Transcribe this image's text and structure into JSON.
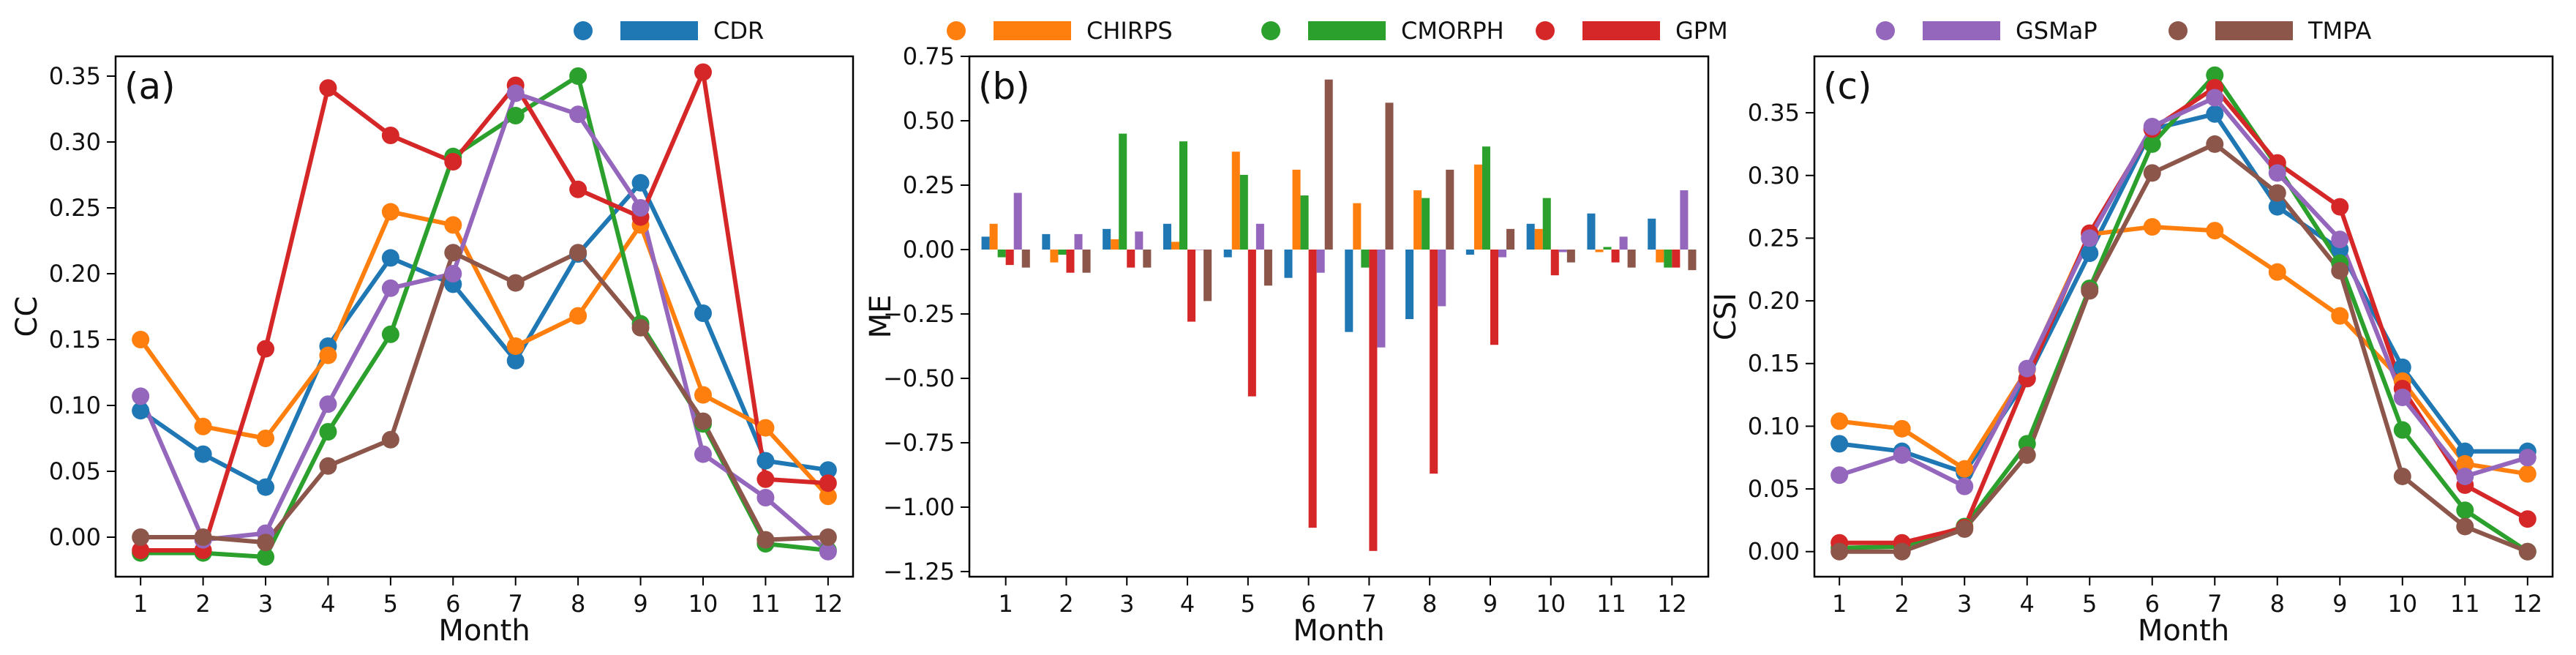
{
  "legend": [
    {
      "name": "CDR",
      "color": "#1f77b4"
    },
    {
      "name": "CHIRPS",
      "color": "#ff7f0e"
    },
    {
      "name": "CMORPH",
      "color": "#2ca02c"
    },
    {
      "name": "GPM",
      "color": "#d62728"
    },
    {
      "name": "GSMaP",
      "color": "#9467bd"
    },
    {
      "name": "TMPA",
      "color": "#8c564b"
    }
  ],
  "chart_data": [
    {
      "id": "a",
      "panel_label": "(a)",
      "type": "line",
      "xlabel": "Month",
      "ylabel": "CC",
      "categories": [
        "1",
        "2",
        "3",
        "4",
        "5",
        "6",
        "7",
        "8",
        "9",
        "10",
        "11",
        "12"
      ],
      "ylim": [
        -0.03,
        0.365
      ],
      "yticks": [
        0.0,
        0.05,
        0.1,
        0.15,
        0.2,
        0.25,
        0.3,
        0.35
      ],
      "ytick_labels": [
        "0.00",
        "0.05",
        "0.10",
        "0.15",
        "0.20",
        "0.25",
        "0.30",
        "0.35"
      ],
      "series": [
        {
          "name": "CDR",
          "values": [
            0.096,
            0.063,
            0.038,
            0.145,
            0.212,
            0.192,
            0.134,
            0.215,
            0.269,
            0.17,
            0.058,
            0.051
          ]
        },
        {
          "name": "CHIRPS",
          "values": [
            0.15,
            0.084,
            0.075,
            0.138,
            0.247,
            0.237,
            0.145,
            0.168,
            0.237,
            0.108,
            0.083,
            0.031
          ]
        },
        {
          "name": "CMORPH",
          "values": [
            -0.012,
            -0.012,
            -0.015,
            0.08,
            0.154,
            0.289,
            0.32,
            0.35,
            0.162,
            0.086,
            -0.005,
            -0.01
          ]
        },
        {
          "name": "GPM",
          "values": [
            -0.01,
            -0.01,
            0.143,
            0.341,
            0.305,
            0.285,
            0.343,
            0.264,
            0.243,
            0.353,
            0.044,
            0.041
          ]
        },
        {
          "name": "GSMaP",
          "values": [
            0.107,
            -0.002,
            0.003,
            0.101,
            0.189,
            0.2,
            0.337,
            0.321,
            0.25,
            0.063,
            0.03,
            -0.011
          ]
        },
        {
          "name": "TMPA",
          "values": [
            0.0,
            0.0,
            -0.004,
            0.054,
            0.074,
            0.216,
            0.193,
            0.216,
            0.159,
            0.088,
            -0.002,
            0.0
          ]
        }
      ]
    },
    {
      "id": "b",
      "panel_label": "(b)",
      "type": "bar",
      "xlabel": "Month",
      "ylabel": "ME",
      "categories": [
        "1",
        "2",
        "3",
        "4",
        "5",
        "6",
        "7",
        "8",
        "9",
        "10",
        "11",
        "12"
      ],
      "ylim": [
        -1.27,
        0.75
      ],
      "yticks": [
        0.75,
        0.5,
        0.25,
        0.0,
        -0.25,
        -0.5,
        -0.75,
        -1.0,
        -1.25
      ],
      "ytick_labels": [
        "0.75",
        "0.50",
        "0.25",
        "0.00",
        "−0.25",
        "−0.50",
        "−0.75",
        "−1.00",
        "−1.25"
      ],
      "series": [
        {
          "name": "CDR",
          "values": [
            0.05,
            0.06,
            0.08,
            0.1,
            -0.03,
            -0.11,
            -0.32,
            -0.27,
            -0.02,
            0.1,
            0.14,
            0.12
          ]
        },
        {
          "name": "CHIRPS",
          "values": [
            0.1,
            -0.05,
            0.04,
            0.03,
            0.38,
            0.31,
            0.18,
            0.23,
            0.33,
            0.08,
            -0.01,
            -0.05
          ]
        },
        {
          "name": "CMORPH",
          "values": [
            -0.03,
            -0.02,
            0.45,
            0.42,
            0.29,
            0.21,
            -0.07,
            0.2,
            0.4,
            0.2,
            0.01,
            -0.07
          ]
        },
        {
          "name": "GPM",
          "values": [
            -0.06,
            -0.09,
            -0.07,
            -0.28,
            -0.57,
            -1.08,
            -1.17,
            -0.87,
            -0.37,
            -0.1,
            -0.05,
            -0.07
          ]
        },
        {
          "name": "GSMaP",
          "values": [
            0.22,
            0.06,
            0.07,
            0.0,
            0.1,
            -0.09,
            -0.38,
            -0.22,
            -0.03,
            -0.01,
            0.05,
            0.23
          ]
        },
        {
          "name": "TMPA",
          "values": [
            -0.07,
            -0.09,
            -0.07,
            -0.2,
            -0.14,
            0.66,
            0.57,
            0.31,
            0.08,
            -0.05,
            -0.07,
            -0.08
          ]
        }
      ]
    },
    {
      "id": "c",
      "panel_label": "(c)",
      "type": "line",
      "xlabel": "Month",
      "ylabel": "CSI",
      "categories": [
        "1",
        "2",
        "3",
        "4",
        "5",
        "6",
        "7",
        "8",
        "9",
        "10",
        "11",
        "12"
      ],
      "ylim": [
        -0.02,
        0.395
      ],
      "yticks": [
        0.0,
        0.05,
        0.1,
        0.15,
        0.2,
        0.25,
        0.3,
        0.35
      ],
      "ytick_labels": [
        "0.00",
        "0.05",
        "0.10",
        "0.15",
        "0.20",
        "0.25",
        "0.30",
        "0.35"
      ],
      "series": [
        {
          "name": "CDR",
          "values": [
            0.086,
            0.08,
            0.063,
            0.138,
            0.238,
            0.337,
            0.349,
            0.275,
            0.241,
            0.147,
            0.08,
            0.08
          ]
        },
        {
          "name": "CHIRPS",
          "values": [
            0.104,
            0.098,
            0.066,
            0.145,
            0.253,
            0.259,
            0.256,
            0.223,
            0.188,
            0.136,
            0.07,
            0.062
          ]
        },
        {
          "name": "CMORPH",
          "values": [
            0.003,
            0.004,
            0.02,
            0.086,
            0.21,
            0.325,
            0.38,
            0.307,
            0.23,
            0.097,
            0.033,
            0.0
          ]
        },
        {
          "name": "GPM",
          "values": [
            0.007,
            0.007,
            0.019,
            0.138,
            0.254,
            0.337,
            0.37,
            0.31,
            0.275,
            0.13,
            0.053,
            0.026
          ]
        },
        {
          "name": "GSMaP",
          "values": [
            0.061,
            0.077,
            0.052,
            0.146,
            0.25,
            0.339,
            0.362,
            0.302,
            0.249,
            0.123,
            0.06,
            0.075
          ]
        },
        {
          "name": "TMPA",
          "values": [
            0.0,
            0.0,
            0.018,
            0.077,
            0.208,
            0.302,
            0.325,
            0.286,
            0.224,
            0.06,
            0.02,
            0.0
          ]
        }
      ]
    }
  ]
}
